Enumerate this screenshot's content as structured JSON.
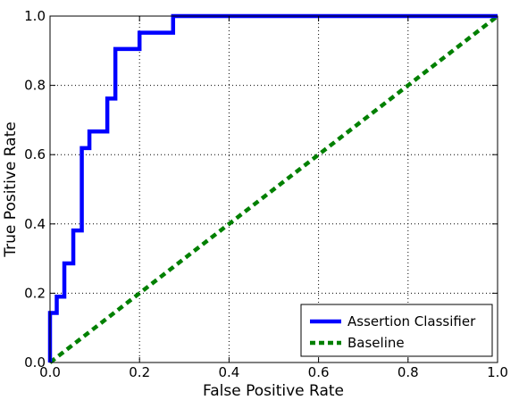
{
  "chart_data": {
    "type": "line",
    "title": "",
    "xlabel": "False Positive Rate",
    "ylabel": "True Positive Rate",
    "xlim": [
      0.0,
      1.0
    ],
    "ylim": [
      0.0,
      1.0
    ],
    "xticks": [
      "0.0",
      "0.2",
      "0.4",
      "0.6",
      "0.8",
      "1.0"
    ],
    "yticks": [
      "0.0",
      "0.2",
      "0.4",
      "0.6",
      "0.8",
      "1.0"
    ],
    "grid": true,
    "grid_style": "dotted",
    "legend_position": "lower-right",
    "series": [
      {
        "name": "Assertion Classifier",
        "color": "#0000ff",
        "line_style": "solid",
        "x": [
          0.0,
          0.0,
          0.0,
          0.015,
          0.015,
          0.032,
          0.032,
          0.052,
          0.052,
          0.071,
          0.071,
          0.088,
          0.088,
          0.128,
          0.128,
          0.146,
          0.146,
          0.2,
          0.2,
          0.275,
          0.275,
          1.0
        ],
        "y": [
          0.0,
          0.048,
          0.143,
          0.143,
          0.19,
          0.19,
          0.286,
          0.286,
          0.381,
          0.381,
          0.619,
          0.619,
          0.667,
          0.667,
          0.762,
          0.762,
          0.905,
          0.905,
          0.952,
          0.952,
          1.0,
          1.0
        ]
      },
      {
        "name": "Baseline",
        "color": "#008000",
        "line_style": "dashed",
        "x": [
          0.0,
          1.0
        ],
        "y": [
          0.0,
          1.0
        ]
      }
    ]
  }
}
